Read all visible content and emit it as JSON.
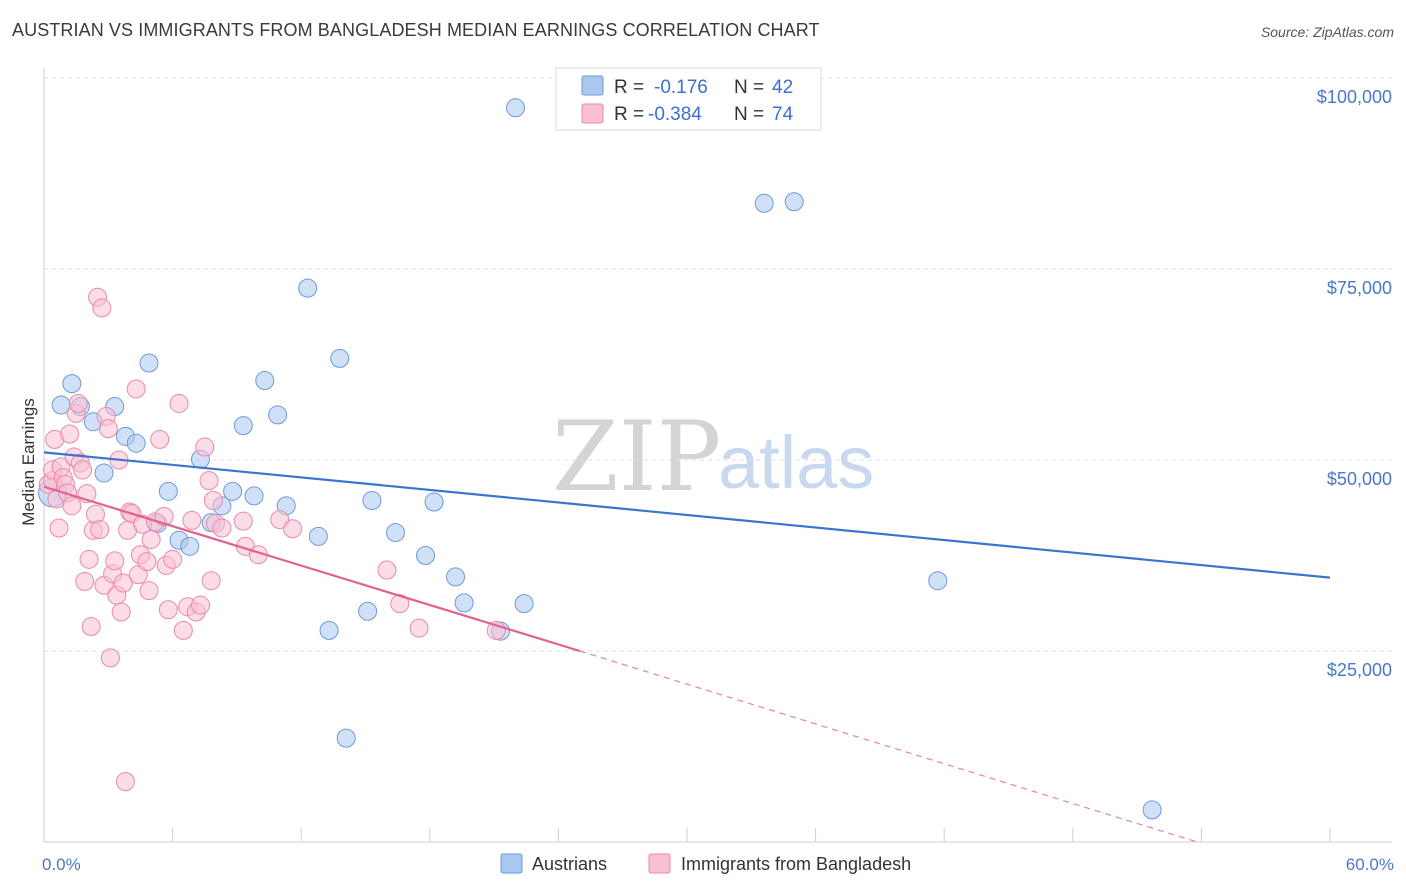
{
  "title": "AUSTRIAN VS IMMIGRANTS FROM BANGLADESH MEDIAN EARNINGS CORRELATION CHART",
  "source": "Source: ZipAtlas.com",
  "watermark": {
    "zip": "ZIP",
    "atlas": "atlas"
  },
  "stats_box": {
    "rows": [
      {
        "r_label": "R = ",
        "r_value": "-0.176",
        "n_label": "N = ",
        "n_value": "42",
        "color": "#a9c8f0",
        "edge": "#6d9ad8"
      },
      {
        "r_label": "R = ",
        "r_value": "-0.384",
        "n_label": "N = ",
        "n_value": "74",
        "color": "#f9c0d2",
        "edge": "#e88aab"
      }
    ]
  },
  "chart_data": {
    "type": "scatter",
    "xlabel": "",
    "ylabel": "Median Earnings",
    "xlim": [
      0,
      60
    ],
    "ylim": [
      0,
      105000
    ],
    "x_tick_labels": [
      "0.0%",
      "60.0%"
    ],
    "y_ticks": [
      25000,
      50000,
      75000,
      100000
    ],
    "y_tick_labels": [
      "$25,000",
      "$50,000",
      "$75,000",
      "$100,000"
    ],
    "legend": [
      "Austrians",
      "Immigrants from Bangladesh"
    ],
    "series": [
      {
        "name": "Austrians",
        "color": "#a9c8f0",
        "edge": "#6d9ad8",
        "line_color": "#3b74d0",
        "trend": {
          "x": [
            0,
            60
          ],
          "y": [
            51000,
            34600
          ]
        },
        "points": [
          [
            0.4,
            45700
          ],
          [
            0.8,
            57200
          ],
          [
            1.3,
            60000
          ],
          [
            1.7,
            57000
          ],
          [
            2.3,
            55000
          ],
          [
            2.8,
            48300
          ],
          [
            3.3,
            57000
          ],
          [
            3.8,
            53100
          ],
          [
            4.3,
            52200
          ],
          [
            4.9,
            62700
          ],
          [
            5.3,
            41700
          ],
          [
            5.8,
            45900
          ],
          [
            6.3,
            39500
          ],
          [
            6.8,
            38700
          ],
          [
            7.3,
            50100
          ],
          [
            7.8,
            41800
          ],
          [
            8.3,
            44000
          ],
          [
            8.8,
            45900
          ],
          [
            9.3,
            54500
          ],
          [
            9.8,
            45300
          ],
          [
            10.3,
            60400
          ],
          [
            10.9,
            55900
          ],
          [
            11.3,
            44000
          ],
          [
            12.3,
            72500
          ],
          [
            12.8,
            40000
          ],
          [
            13.3,
            27700
          ],
          [
            13.8,
            63300
          ],
          [
            14.1,
            13600
          ],
          [
            15.1,
            30200
          ],
          [
            15.3,
            44700
          ],
          [
            16.4,
            40500
          ],
          [
            17.8,
            37500
          ],
          [
            18.2,
            44500
          ],
          [
            19.2,
            34700
          ],
          [
            19.6,
            31300
          ],
          [
            21.3,
            27600
          ],
          [
            22.4,
            31200
          ],
          [
            22.0,
            96100
          ],
          [
            33.6,
            83600
          ],
          [
            35.0,
            83800
          ],
          [
            41.7,
            34200
          ],
          [
            51.7,
            4200
          ]
        ]
      },
      {
        "name": "Immigrants from Bangladesh",
        "color": "#f9c0d2",
        "edge": "#e88aab",
        "line_color": "#e0628f",
        "trend": {
          "x": [
            0,
            25
          ],
          "y": [
            46500,
            25000
          ]
        },
        "trend_ext": {
          "x": [
            25,
            53.8
          ],
          "y": [
            25000,
            0
          ]
        },
        "points": [
          [
            0.2,
            46800
          ],
          [
            0.4,
            47300
          ],
          [
            0.4,
            48700
          ],
          [
            0.5,
            52700
          ],
          [
            0.6,
            44900
          ],
          [
            0.7,
            41100
          ],
          [
            0.8,
            49100
          ],
          [
            0.9,
            47700
          ],
          [
            1.0,
            46800
          ],
          [
            1.1,
            45700
          ],
          [
            1.2,
            53400
          ],
          [
            1.3,
            44000
          ],
          [
            1.4,
            50400
          ],
          [
            1.5,
            56100
          ],
          [
            1.6,
            57400
          ],
          [
            1.7,
            49600
          ],
          [
            1.8,
            48700
          ],
          [
            1.9,
            34100
          ],
          [
            2.0,
            45600
          ],
          [
            2.1,
            37000
          ],
          [
            2.2,
            28200
          ],
          [
            2.3,
            40800
          ],
          [
            2.4,
            42900
          ],
          [
            2.5,
            71300
          ],
          [
            2.6,
            40900
          ],
          [
            2.7,
            69900
          ],
          [
            2.8,
            33600
          ],
          [
            2.9,
            55700
          ],
          [
            3.0,
            54100
          ],
          [
            3.1,
            24100
          ],
          [
            3.2,
            35100
          ],
          [
            3.3,
            36800
          ],
          [
            3.4,
            32300
          ],
          [
            3.5,
            50000
          ],
          [
            3.6,
            30100
          ],
          [
            3.7,
            33900
          ],
          [
            3.8,
            7900
          ],
          [
            3.9,
            40800
          ],
          [
            4.0,
            43200
          ],
          [
            4.1,
            43000
          ],
          [
            4.3,
            59300
          ],
          [
            4.4,
            35000
          ],
          [
            4.5,
            37600
          ],
          [
            4.6,
            41600
          ],
          [
            4.8,
            36700
          ],
          [
            4.9,
            32900
          ],
          [
            5.0,
            39600
          ],
          [
            5.2,
            41900
          ],
          [
            5.4,
            52700
          ],
          [
            5.6,
            42600
          ],
          [
            5.7,
            36200
          ],
          [
            5.8,
            30400
          ],
          [
            6.0,
            37000
          ],
          [
            6.3,
            57400
          ],
          [
            6.5,
            27700
          ],
          [
            6.7,
            30800
          ],
          [
            6.9,
            42100
          ],
          [
            7.1,
            30100
          ],
          [
            7.3,
            31000
          ],
          [
            7.5,
            51700
          ],
          [
            7.7,
            47300
          ],
          [
            7.8,
            34200
          ],
          [
            7.9,
            44700
          ],
          [
            8.0,
            41700
          ],
          [
            8.3,
            41100
          ],
          [
            9.3,
            42000
          ],
          [
            9.4,
            38700
          ],
          [
            10.0,
            37600
          ],
          [
            11.0,
            42200
          ],
          [
            11.6,
            41000
          ],
          [
            16.0,
            35600
          ],
          [
            16.6,
            31200
          ],
          [
            17.5,
            28000
          ],
          [
            21.1,
            27700
          ]
        ]
      }
    ]
  }
}
